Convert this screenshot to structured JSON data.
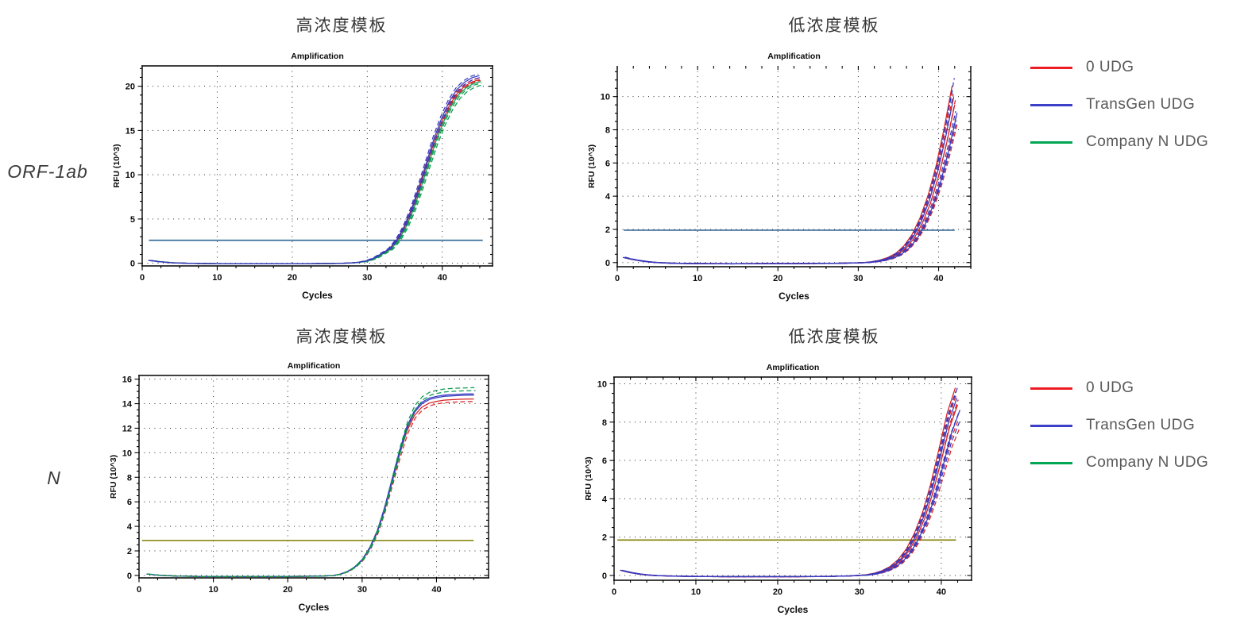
{
  "row_labels": [
    {
      "text": "ORF-1ab"
    },
    {
      "text": "N"
    }
  ],
  "column_titles": {
    "row1": [
      "高浓度模板",
      "低浓度模板"
    ],
    "row2": [
      "高浓度模板",
      "低浓度模板"
    ]
  },
  "legend": {
    "items": [
      {
        "label": "0 UDG",
        "color": "#ed1c24"
      },
      {
        "label": "TransGen UDG",
        "color": "#3c40c8"
      },
      {
        "label": "Company N UDG",
        "color": "#00a651"
      }
    ]
  },
  "chart_data": [
    {
      "id": "orf1ab-high",
      "type": "line",
      "title": "Amplification",
      "xlabel": "Cycles",
      "ylabel": "RFU (10^3)",
      "xlim": [
        0,
        46.7
      ],
      "ylim": [
        -0.3,
        22.3
      ],
      "xticks": [
        0,
        10,
        20,
        30,
        40
      ],
      "yticks": [
        0,
        5,
        10,
        15,
        20
      ],
      "x_minor": 2.5,
      "y_minor": 1,
      "grid": "dotted",
      "frame_top": true,
      "top_ticks": false,
      "threshold": {
        "value": 2.6,
        "color": "#2e6593",
        "x_start": 0.9,
        "x_end": 45.4
      },
      "base_points": [
        [
          1,
          0.32
        ],
        [
          2,
          0.2
        ],
        [
          3,
          0.12
        ],
        [
          4,
          0.06
        ],
        [
          5,
          0.02
        ],
        [
          7,
          -0.02
        ],
        [
          10,
          -0.04
        ],
        [
          14,
          -0.05
        ],
        [
          18,
          -0.05
        ],
        [
          22,
          -0.04
        ],
        [
          26,
          -0.02
        ],
        [
          28,
          0.05
        ],
        [
          29,
          0.12
        ],
        [
          30,
          0.28
        ],
        [
          31,
          0.6
        ],
        [
          32,
          1.1
        ],
        [
          33,
          1.6
        ],
        [
          34,
          2.6
        ],
        [
          35,
          4.1
        ],
        [
          36,
          6.1
        ],
        [
          37,
          8.6
        ],
        [
          38,
          11.3
        ],
        [
          39,
          13.9
        ],
        [
          40,
          16.1
        ],
        [
          41,
          17.9
        ],
        [
          42,
          19.2
        ],
        [
          43,
          20.0
        ],
        [
          44,
          20.5
        ],
        [
          45,
          20.75
        ]
      ],
      "series": [
        {
          "name": "0 UDG",
          "color": "#d92121",
          "variants": [
            {
              "dx": 0,
              "sy": 1.0,
              "dash": false
            },
            {
              "dx": -0.12,
              "sy": 1.008,
              "dash": true
            },
            {
              "dx": 0.1,
              "sy": 0.996,
              "dash": true
            }
          ]
        },
        {
          "name": "Company N UDG",
          "color": "#0c9b4e",
          "variants": [
            {
              "dx": 0.25,
              "sy": 0.982,
              "dash": true
            },
            {
              "dx": 0.4,
              "sy": 0.972,
              "dash": true
            },
            {
              "dx": 0.15,
              "sy": 0.99,
              "dash": false
            }
          ]
        },
        {
          "name": "TransGen UDG",
          "color": "#3639bf",
          "variants": [
            {
              "dx": -0.05,
              "sy": 1.022,
              "dash": false
            },
            {
              "dx": -0.2,
              "sy": 1.03,
              "dash": true
            },
            {
              "dx": 0.08,
              "sy": 1.012,
              "dash": true
            }
          ]
        }
      ]
    },
    {
      "id": "orf1ab-low",
      "type": "line",
      "title": "Amplification",
      "xlabel": "Cycles",
      "ylabel": "RFU (10^3)",
      "xlim": [
        0,
        44
      ],
      "ylim": [
        -0.25,
        11.85
      ],
      "xticks": [
        0,
        10,
        20,
        30,
        40
      ],
      "yticks": [
        0,
        2,
        4,
        6,
        8,
        10
      ],
      "x_minor": 2,
      "y_minor": 0.5,
      "grid": "dotted",
      "frame_top": false,
      "top_ticks": true,
      "threshold": {
        "value": 1.95,
        "color": "#2e6593",
        "x_start": 0.8,
        "x_end": 42.0
      },
      "base_points": [
        [
          1,
          0.28
        ],
        [
          2,
          0.18
        ],
        [
          3,
          0.1
        ],
        [
          4,
          0.04
        ],
        [
          5,
          0.0
        ],
        [
          7,
          -0.04
        ],
        [
          10,
          -0.06
        ],
        [
          14,
          -0.07
        ],
        [
          18,
          -0.06
        ],
        [
          22,
          -0.06
        ],
        [
          26,
          -0.05
        ],
        [
          29,
          -0.03
        ],
        [
          31,
          0.0
        ],
        [
          32,
          0.05
        ],
        [
          33,
          0.13
        ],
        [
          34,
          0.27
        ],
        [
          35,
          0.5
        ],
        [
          36,
          0.9
        ],
        [
          37,
          1.5
        ],
        [
          38,
          2.4
        ],
        [
          39,
          3.6
        ],
        [
          40,
          5.2
        ],
        [
          41,
          7.2
        ],
        [
          42,
          9.5
        ]
      ],
      "series": [
        {
          "name": "0 UDG",
          "color": "#d92121",
          "variants": [
            {
              "dx": 0,
              "sy": 1.0,
              "dash": false
            },
            {
              "dx": 0.18,
              "sy": 0.93,
              "dash": true
            },
            {
              "dx": -0.18,
              "sy": 1.07,
              "dash": true
            },
            {
              "dx": 0.32,
              "sy": 0.88,
              "dash": true
            },
            {
              "dx": -0.32,
              "sy": 1.12,
              "dash": false
            },
            {
              "dx": 0.08,
              "sy": 1.03,
              "dash": true
            }
          ]
        },
        {
          "name": "TransGen UDG",
          "color": "#3639bf",
          "variants": [
            {
              "dx": 0.12,
              "sy": 0.96,
              "dash": true
            },
            {
              "dx": -0.12,
              "sy": 1.05,
              "dash": false
            },
            {
              "dx": 0.25,
              "sy": 0.9,
              "dash": true
            },
            {
              "dx": -0.25,
              "sy": 1.1,
              "dash": true
            },
            {
              "dx": -0.05,
              "sy": 1.17,
              "dash": true
            },
            {
              "dx": 0.3,
              "sy": 0.95,
              "dash": false
            }
          ]
        }
      ]
    },
    {
      "id": "n-high",
      "type": "line",
      "title": "Amplification",
      "xlabel": "Cycles",
      "ylabel": "RFU (10^3)",
      "xlim": [
        0,
        47
      ],
      "ylim": [
        -0.2,
        16.3
      ],
      "xticks": [
        0,
        10,
        20,
        30,
        40
      ],
      "yticks": [
        0,
        2,
        4,
        6,
        8,
        10,
        12,
        14,
        16
      ],
      "x_minor": 2.5,
      "y_minor": 0.5,
      "grid": "dotted",
      "frame_top": true,
      "top_ticks": false,
      "threshold": {
        "value": 2.85,
        "color": "#7f7f00",
        "x_start": 0.4,
        "x_end": 45.0
      },
      "base_points": [
        [
          1,
          0.12
        ],
        [
          2,
          0.05
        ],
        [
          3,
          0.0
        ],
        [
          5,
          -0.05
        ],
        [
          8,
          -0.08
        ],
        [
          12,
          -0.09
        ],
        [
          16,
          -0.09
        ],
        [
          20,
          -0.08
        ],
        [
          24,
          -0.06
        ],
        [
          26,
          -0.02
        ],
        [
          27,
          0.1
        ],
        [
          28,
          0.32
        ],
        [
          29,
          0.7
        ],
        [
          30,
          1.3
        ],
        [
          31,
          2.25
        ],
        [
          32,
          3.6
        ],
        [
          33,
          5.5
        ],
        [
          34,
          7.8
        ],
        [
          35,
          10.1
        ],
        [
          36,
          12.1
        ],
        [
          37,
          13.4
        ],
        [
          38,
          14.1
        ],
        [
          39,
          14.45
        ],
        [
          40,
          14.6
        ],
        [
          41,
          14.7
        ],
        [
          42,
          14.74
        ],
        [
          43,
          14.77
        ],
        [
          44,
          14.79
        ],
        [
          45,
          14.8
        ]
      ],
      "series": [
        {
          "name": "0 UDG",
          "color": "#d92121",
          "variants": [
            {
              "dx": 0.02,
              "sy": 0.972,
              "dash": false
            },
            {
              "dx": 0.15,
              "sy": 0.958,
              "dash": true
            }
          ]
        },
        {
          "name": "TransGen UDG",
          "color": "#3639bf",
          "variants": [
            {
              "dx": 0,
              "sy": 1.0,
              "dash": false
            },
            {
              "dx": 0.06,
              "sy": 0.993,
              "dash": false
            }
          ]
        },
        {
          "name": "Company N UDG",
          "color": "#0c9b4e",
          "variants": [
            {
              "dx": 0.1,
              "sy": 1.034,
              "dash": true
            },
            {
              "dx": 0.25,
              "sy": 1.018,
              "dash": true
            }
          ]
        }
      ]
    },
    {
      "id": "n-low",
      "type": "line",
      "title": "Amplification",
      "xlabel": "Cycles",
      "ylabel": "RFU (10^3)",
      "xlim": [
        0,
        43.7
      ],
      "ylim": [
        -0.25,
        10.35
      ],
      "xticks": [
        0,
        10,
        20,
        30,
        40
      ],
      "yticks": [
        0,
        2,
        4,
        6,
        8,
        10
      ],
      "x_minor": 2,
      "y_minor": 0.5,
      "grid": "dotted",
      "frame_top": true,
      "top_ticks": true,
      "threshold": {
        "value": 1.85,
        "color": "#7f7f00",
        "x_start": 0.4,
        "x_end": 41.8
      },
      "base_points": [
        [
          1,
          0.25
        ],
        [
          2,
          0.15
        ],
        [
          3,
          0.08
        ],
        [
          4,
          0.03
        ],
        [
          5,
          0.0
        ],
        [
          7,
          -0.03
        ],
        [
          10,
          -0.05
        ],
        [
          14,
          -0.06
        ],
        [
          18,
          -0.06
        ],
        [
          22,
          -0.06
        ],
        [
          26,
          -0.05
        ],
        [
          29,
          -0.02
        ],
        [
          31,
          0.03
        ],
        [
          32,
          0.1
        ],
        [
          33,
          0.22
        ],
        [
          34,
          0.42
        ],
        [
          35,
          0.75
        ],
        [
          36,
          1.25
        ],
        [
          37,
          2.0
        ],
        [
          38,
          3.0
        ],
        [
          39,
          4.35
        ],
        [
          40,
          6.0
        ],
        [
          41,
          7.7
        ],
        [
          42,
          8.9
        ]
      ],
      "series": [
        {
          "name": "0 UDG",
          "color": "#d92121",
          "variants": [
            {
              "dx": 0,
              "sy": 1.0,
              "dash": false
            },
            {
              "dx": 0.15,
              "sy": 0.92,
              "dash": true
            },
            {
              "dx": -0.15,
              "sy": 1.06,
              "dash": true
            },
            {
              "dx": 0.3,
              "sy": 0.87,
              "dash": true
            },
            {
              "dx": -0.28,
              "sy": 1.1,
              "dash": false
            },
            {
              "dx": 0.07,
              "sy": 1.03,
              "dash": true
            }
          ]
        },
        {
          "name": "TransGen UDG",
          "color": "#3639bf",
          "variants": [
            {
              "dx": 0.1,
              "sy": 0.95,
              "dash": true
            },
            {
              "dx": -0.1,
              "sy": 1.04,
              "dash": false
            },
            {
              "dx": 0.22,
              "sy": 0.9,
              "dash": true
            },
            {
              "dx": -0.22,
              "sy": 1.08,
              "dash": true
            },
            {
              "dx": -0.03,
              "sy": 1.1,
              "dash": true
            },
            {
              "dx": 0.28,
              "sy": 0.97,
              "dash": false
            }
          ]
        }
      ]
    }
  ]
}
